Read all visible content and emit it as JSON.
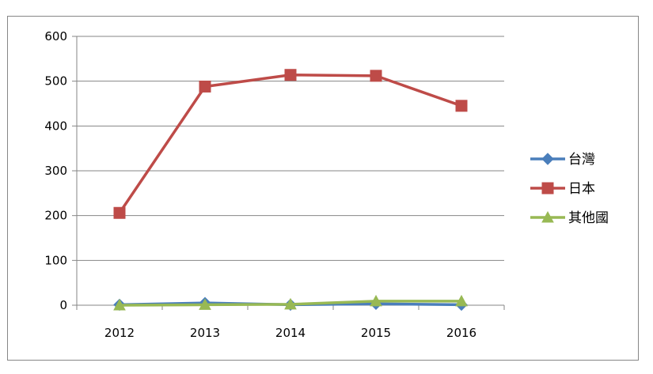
{
  "chart_data": {
    "type": "line",
    "title": "",
    "xlabel": "",
    "ylabel": "",
    "categories": [
      "2012",
      "2013",
      "2014",
      "2015",
      "2016"
    ],
    "ylim": [
      0,
      600
    ],
    "yticks": [
      0,
      100,
      200,
      300,
      400,
      500,
      600
    ],
    "grid": true,
    "legend_position": "right",
    "series": [
      {
        "name": "台灣",
        "values": [
          1,
          5,
          1,
          3,
          1
        ],
        "color": "#4a7ebb",
        "marker": "diamond"
      },
      {
        "name": "日本",
        "values": [
          206,
          488,
          514,
          512,
          445
        ],
        "color": "#be4b48",
        "marker": "square"
      },
      {
        "name": "其他國",
        "values": [
          0,
          1,
          2,
          9,
          9
        ],
        "color": "#98b954",
        "marker": "triangle"
      }
    ]
  }
}
